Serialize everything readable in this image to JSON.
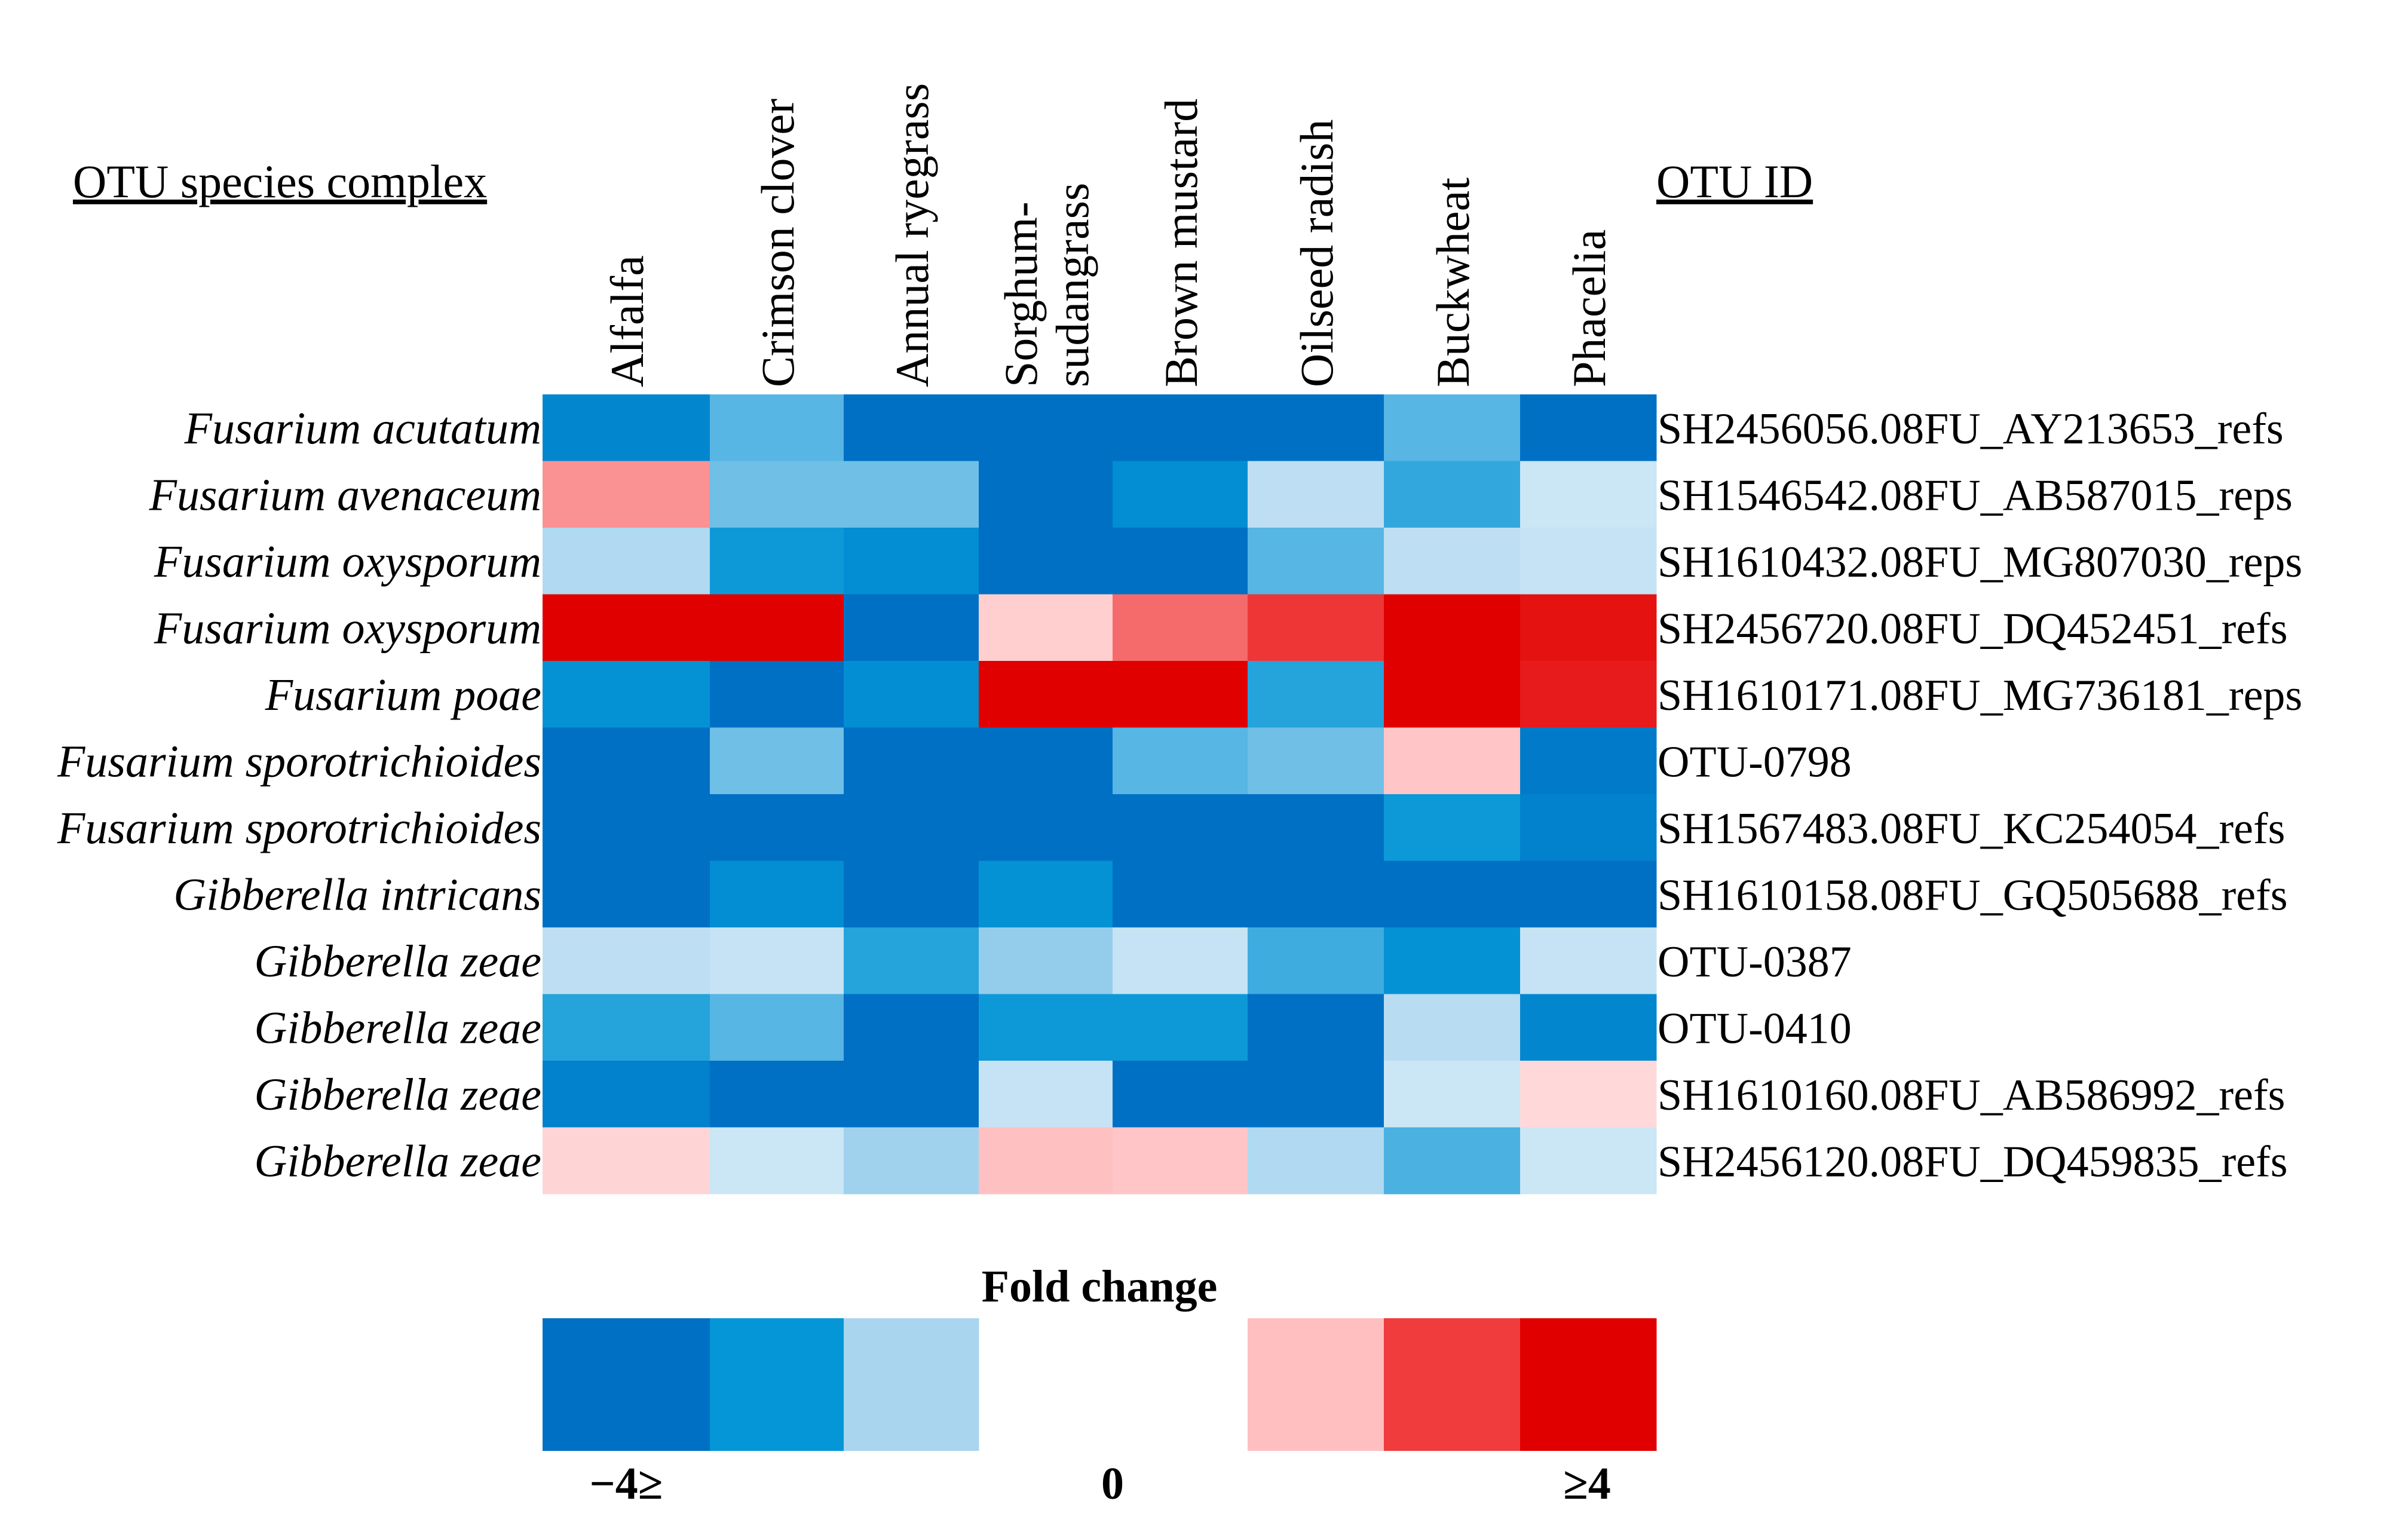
{
  "chart_data": {
    "type": "heatmap",
    "row_header": "OTU species complex",
    "id_header": "OTU ID",
    "columns": [
      "Alfalfa",
      "Crimson clover",
      "Annual ryegrass",
      "Sorghum-sudangrass",
      "Brown mustard",
      "Oilseed radish",
      "Buckwheat",
      "Phacelia"
    ],
    "column_display": [
      [
        "Alfalfa"
      ],
      [
        "Crimson clover"
      ],
      [
        "Annual ryegrass"
      ],
      [
        "Sorghum-",
        "sudangrass"
      ],
      [
        "Brown mustard"
      ],
      [
        "Oilseed radish"
      ],
      [
        "Buckwheat"
      ],
      [
        "Phacelia"
      ]
    ],
    "rows": [
      {
        "species": "Fusarium acutatum",
        "otu_id": "SH2456056.08FU_AY213653_refs",
        "values": [
          -3.2,
          -2.0,
          -4.0,
          -4.0,
          -4.0,
          -4.0,
          -2.0,
          -4.0
        ]
      },
      {
        "species": "Fusarium avenaceum",
        "otu_id": "SH1546542.08FU_AB587015_reps",
        "values": [
          1.8,
          -1.8,
          -1.8,
          -4.0,
          -3.0,
          -1.0,
          -2.3,
          -0.8
        ]
      },
      {
        "species": "Fusarium oxysporum",
        "otu_id": "SH1610432.08FU_MG807030_reps",
        "values": [
          -1.2,
          -2.6,
          -3.0,
          -4.0,
          -4.0,
          -2.0,
          -1.0,
          -0.9
        ]
      },
      {
        "species": "Fusarium oxysporum",
        "otu_id": "SH2456720.08FU_DQ452451_refs",
        "values": [
          4.0,
          4.0,
          -4.0,
          1.0,
          2.2,
          2.8,
          4.0,
          3.6
        ]
      },
      {
        "species": "Fusarium poae",
        "otu_id": "SH1610171.08FU_MG736181_reps",
        "values": [
          -2.8,
          -4.0,
          -3.0,
          4.0,
          4.0,
          -2.4,
          4.0,
          3.4
        ]
      },
      {
        "species": "Fusarium sporotrichioides",
        "otu_id": "OTU-0798",
        "values": [
          -4.0,
          -1.8,
          -4.0,
          -4.0,
          -2.0,
          -1.8,
          1.2,
          -3.6
        ]
      },
      {
        "species": "Fusarium sporotrichioides",
        "otu_id": "SH1567483.08FU_KC254054_refs",
        "values": [
          -4.0,
          -4.0,
          -4.0,
          -4.0,
          -4.0,
          -4.0,
          -2.6,
          -3.4
        ]
      },
      {
        "species": "Gibberella intricans",
        "otu_id": "SH1610158.08FU_GQ505688_refs",
        "values": [
          -4.0,
          -3.0,
          -4.0,
          -2.8,
          -4.0,
          -4.0,
          -4.0,
          -4.0
        ]
      },
      {
        "species": "Gibberella zeae",
        "otu_id": "OTU-0387",
        "values": [
          -1.0,
          -0.9,
          -2.4,
          -1.5,
          -0.9,
          -2.2,
          -2.8,
          -0.9
        ]
      },
      {
        "species": "Gibberella zeae",
        "otu_id": "OTU-0410",
        "values": [
          -2.4,
          -2.0,
          -4.0,
          -2.6,
          -2.6,
          -4.0,
          -1.1,
          -3.2
        ]
      },
      {
        "species": "Gibberella zeae",
        "otu_id": "SH1610160.08FU_AB586992_refs",
        "values": [
          -3.4,
          -4.0,
          -4.0,
          -0.9,
          -4.0,
          -4.0,
          -0.8,
          0.8
        ]
      },
      {
        "species": "Gibberella zeae",
        "otu_id": "SH2456120.08FU_DQ459835_refs",
        "values": [
          0.9,
          -0.8,
          -1.4,
          1.3,
          1.2,
          -1.2,
          -2.1,
          -0.8
        ]
      }
    ],
    "legend": {
      "title": "Fold change",
      "ticks": [
        "−4≥",
        "0",
        "≥4"
      ],
      "range": [
        -4,
        4
      ],
      "levels": [
        -4,
        -2.67,
        -1.33,
        0,
        1.33,
        2.67,
        4
      ]
    },
    "colors": {
      "neg_strong": "#0070C4",
      "neg_mid": "#0496D6",
      "neg_light": "#A9D5EF",
      "neutral": "#FFFFFF",
      "pos_light": "#FFBFC1",
      "pos_mid": "#F03C3C",
      "pos_strong": "#E00000"
    }
  }
}
